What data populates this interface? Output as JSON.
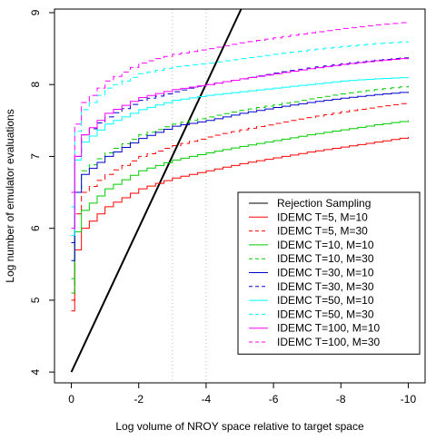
{
  "chart_data": {
    "type": "line",
    "title": "",
    "xlabel": "Log volume of NROY space relative to target space",
    "ylabel": "Log number of emulator evaluations",
    "xlim": [
      0.5,
      -10.5
    ],
    "ylim": [
      3.85,
      9.05
    ],
    "x_ticks": [
      0,
      -2,
      -4,
      -6,
      -8,
      -10
    ],
    "x_tick_labels": [
      "0",
      "-2",
      "-4",
      "-6",
      "-8",
      "-10"
    ],
    "y_ticks": [
      4,
      5,
      6,
      7,
      8,
      9
    ],
    "y_tick_labels": [
      "4",
      "5",
      "6",
      "7",
      "8",
      "9"
    ],
    "grid": false,
    "reference_lines": [
      {
        "x": -3,
        "color": "#bebebe",
        "dash": "dotted"
      },
      {
        "x": -4,
        "color": "#bebebe",
        "dash": "dotted"
      }
    ],
    "legend_position": "bottom-right",
    "series": [
      {
        "name": "Rejection Sampling",
        "color": "#000000",
        "dash": "solid",
        "kind": "linear",
        "x": [
          0,
          -5.04
        ],
        "y": [
          4.0,
          9.05
        ]
      },
      {
        "name": "IDEMC T=5, M=10",
        "color": "#ff0000",
        "dash": "solid",
        "kind": "step",
        "x": [
          0,
          -0.1,
          -0.3,
          -1,
          -2,
          -3,
          -4,
          -5,
          -6,
          -7,
          -8,
          -9,
          -10
        ],
        "y": [
          4.85,
          5.7,
          6.0,
          6.3,
          6.55,
          6.7,
          6.8,
          6.9,
          6.98,
          7.06,
          7.13,
          7.2,
          7.27
        ]
      },
      {
        "name": "IDEMC T=5, M=30",
        "color": "#ff0000",
        "dash": "dashed",
        "kind": "step",
        "x": [
          0,
          -0.1,
          -0.3,
          -1,
          -2,
          -3,
          -4,
          -5,
          -6,
          -7,
          -8,
          -9,
          -10
        ],
        "y": [
          5.0,
          6.2,
          6.5,
          6.75,
          7.0,
          7.15,
          7.27,
          7.37,
          7.46,
          7.54,
          7.62,
          7.69,
          7.75
        ]
      },
      {
        "name": "IDEMC T=10, M=10",
        "color": "#00cd00",
        "dash": "solid",
        "kind": "step",
        "x": [
          0,
          -0.1,
          -0.3,
          -1,
          -2,
          -3,
          -4,
          -5,
          -6,
          -7,
          -8,
          -9,
          -10
        ],
        "y": [
          5.1,
          5.95,
          6.25,
          6.55,
          6.8,
          6.95,
          7.05,
          7.14,
          7.22,
          7.3,
          7.37,
          7.44,
          7.5
        ]
      },
      {
        "name": "IDEMC T=10, M=30",
        "color": "#00cd00",
        "dash": "dashed",
        "kind": "step",
        "x": [
          0,
          -0.1,
          -0.3,
          -1,
          -2,
          -3,
          -4,
          -5,
          -6,
          -7,
          -8,
          -9,
          -10
        ],
        "y": [
          5.3,
          6.5,
          6.8,
          7.05,
          7.3,
          7.45,
          7.55,
          7.64,
          7.72,
          7.8,
          7.87,
          7.93,
          7.98
        ]
      },
      {
        "name": "IDEMC T=30, M=10",
        "color": "#0000cd",
        "dash": "solid",
        "kind": "step",
        "x": [
          0,
          -0.1,
          -0.3,
          -1,
          -2,
          -3,
          -4,
          -5,
          -6,
          -7,
          -8,
          -9,
          -10
        ],
        "y": [
          5.55,
          6.5,
          6.75,
          7.0,
          7.25,
          7.42,
          7.5,
          7.6,
          7.68,
          7.75,
          7.81,
          7.86,
          7.9
        ]
      },
      {
        "name": "IDEMC T=30, M=30",
        "color": "#0000cd",
        "dash": "dashed",
        "kind": "step",
        "x": [
          0,
          -0.1,
          -0.3,
          -1,
          -2,
          -3,
          -4,
          -5,
          -6,
          -7,
          -8,
          -9,
          -10
        ],
        "y": [
          5.8,
          7.0,
          7.3,
          7.55,
          7.78,
          7.9,
          8.0,
          8.08,
          8.16,
          8.23,
          8.29,
          8.34,
          8.38
        ]
      },
      {
        "name": "IDEMC T=50, M=10",
        "color": "#00ffff",
        "dash": "solid",
        "kind": "step",
        "x": [
          0,
          -0.1,
          -0.3,
          -1,
          -2,
          -3,
          -4,
          -5,
          -6,
          -7,
          -8,
          -9,
          -10
        ],
        "y": [
          5.9,
          6.95,
          7.2,
          7.45,
          7.65,
          7.78,
          7.85,
          7.9,
          7.95,
          8.0,
          8.05,
          8.08,
          8.1
        ]
      },
      {
        "name": "IDEMC T=50, M=30",
        "color": "#00ffff",
        "dash": "dashed",
        "kind": "step",
        "x": [
          0,
          -0.1,
          -0.3,
          -1,
          -2,
          -3,
          -4,
          -5,
          -6,
          -7,
          -8,
          -9,
          -10
        ],
        "y": [
          6.3,
          7.35,
          7.65,
          7.95,
          8.15,
          8.25,
          8.3,
          8.36,
          8.42,
          8.48,
          8.53,
          8.57,
          8.6
        ]
      },
      {
        "name": "IDEMC T=100, M=10",
        "color": "#ff00ff",
        "dash": "solid",
        "kind": "step",
        "x": [
          0,
          -0.1,
          -0.3,
          -1,
          -2,
          -3,
          -4,
          -5,
          -6,
          -7,
          -8,
          -9,
          -10
        ],
        "y": [
          6.0,
          7.0,
          7.3,
          7.6,
          7.82,
          7.93,
          8.0,
          8.08,
          8.15,
          8.22,
          8.28,
          8.33,
          8.37
        ]
      },
      {
        "name": "IDEMC T=100, M=30",
        "color": "#ff00ff",
        "dash": "dashed",
        "kind": "step",
        "x": [
          0,
          -0.1,
          -0.3,
          -1,
          -2,
          -3,
          -4,
          -5,
          -6,
          -7,
          -8,
          -9,
          -10
        ],
        "y": [
          6.5,
          7.45,
          7.75,
          8.05,
          8.3,
          8.42,
          8.5,
          8.58,
          8.65,
          8.72,
          8.78,
          8.83,
          8.87
        ]
      }
    ]
  }
}
